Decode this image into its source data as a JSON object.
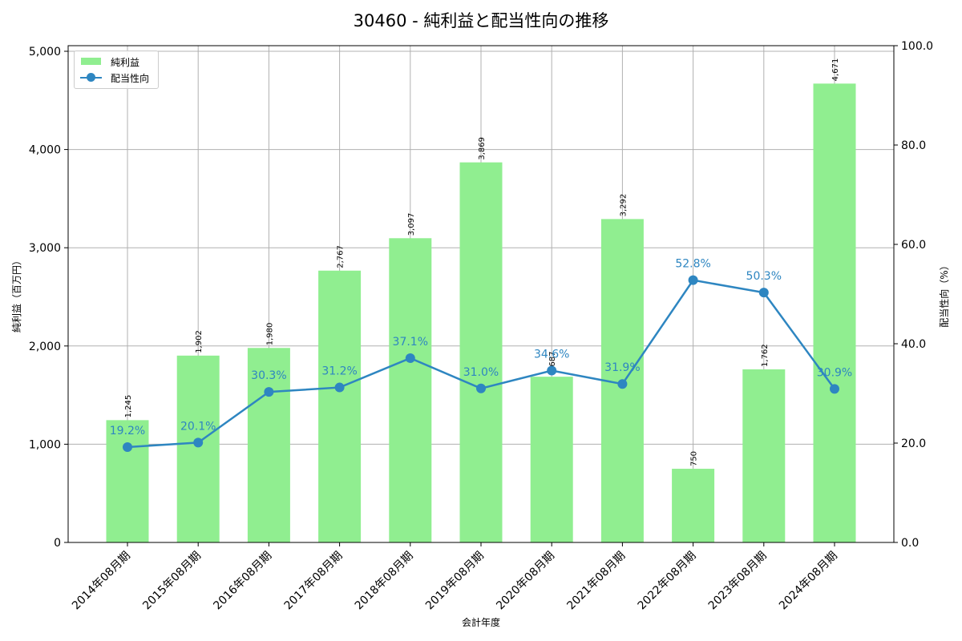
{
  "chart_data": {
    "type": "bar+line",
    "title": "30460 - 純利益と配当性向の推移",
    "xlabel": "会計年度",
    "ylabel": "純利益（百万円）",
    "y2label": "配当性向（%）",
    "categories": [
      "2014年08月期",
      "2015年08月期",
      "2016年08月期",
      "2017年08月期",
      "2018年08月期",
      "2019年08月期",
      "2020年08月期",
      "2021年08月期",
      "2022年08月期",
      "2023年08月期",
      "2024年08月期"
    ],
    "series": [
      {
        "name": "純利益",
        "type": "bar",
        "axis": "left",
        "color": "#90ee90",
        "values": [
          1245,
          1902,
          1980,
          2767,
          3097,
          3869,
          1687,
          3292,
          750,
          1762,
          4671
        ],
        "labels": [
          "1,245",
          "1,902",
          "1,980",
          "2,767",
          "3,097",
          "3,869",
          "1,687",
          "3,292",
          "750",
          "1,762",
          "4,671"
        ]
      },
      {
        "name": "配当性向",
        "type": "line",
        "axis": "right",
        "color": "#2e86c1",
        "values": [
          19.2,
          20.1,
          30.3,
          31.2,
          37.1,
          31.0,
          34.6,
          31.9,
          52.8,
          50.3,
          30.9
        ],
        "labels": [
          "19.2%",
          "20.1%",
          "30.3%",
          "31.2%",
          "37.1%",
          "31.0%",
          "34.6%",
          "31.9%",
          "52.8%",
          "50.3%",
          "30.9%"
        ]
      }
    ],
    "ylim": [
      0,
      5057
    ],
    "y2lim": [
      0,
      100
    ],
    "yticks": [
      "0",
      "1,000",
      "2,000",
      "3,000",
      "4,000",
      "5,000"
    ],
    "y2ticks": [
      "0.0",
      "20.0",
      "40.0",
      "60.0",
      "80.0",
      "100.0"
    ],
    "grid": true,
    "legend_position": "upper left"
  },
  "legend": {
    "bar_label": "純利益",
    "line_label": "配当性向"
  }
}
